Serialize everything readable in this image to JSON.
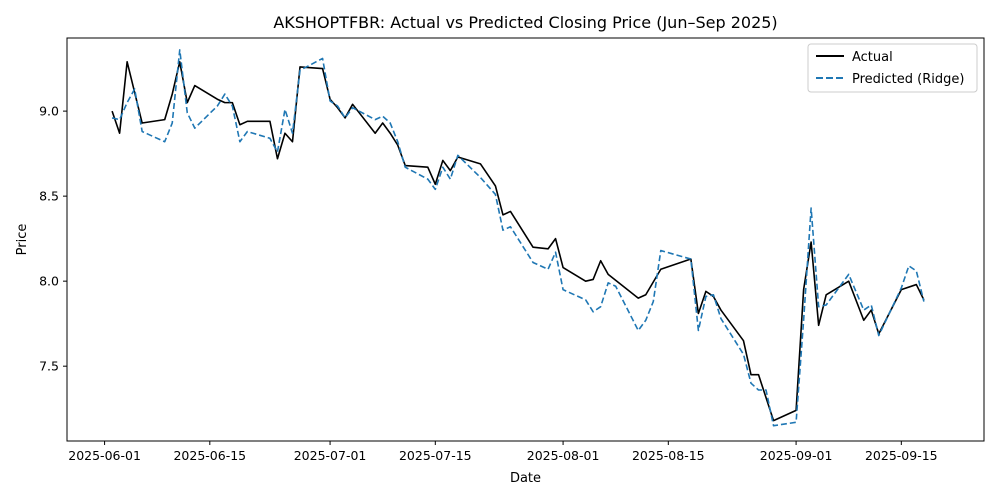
{
  "chart_data": {
    "type": "line",
    "title": "AKSHOPTFBR: Actual vs Predicted Closing Price (Jun–Sep 2025)",
    "xlabel": "Date",
    "ylabel": "Price",
    "xlim": [
      "2025-05-27",
      "2025-09-26"
    ],
    "ylim": [
      7.06,
      9.43
    ],
    "x_ticks": [
      "2025-06-01",
      "2025-06-15",
      "2025-07-01",
      "2025-07-15",
      "2025-08-01",
      "2025-08-15",
      "2025-09-01",
      "2025-09-15"
    ],
    "y_ticks": [
      "7.5",
      "8.0",
      "8.5",
      "9.0"
    ],
    "grid": false,
    "legend_position": "top-right",
    "colors": {
      "actual": "#000000",
      "predicted": "#1f77b4"
    },
    "series": [
      {
        "name": "Actual",
        "style": "solid",
        "points": [
          [
            "2025-06-02",
            9.0
          ],
          [
            "2025-06-03",
            8.87
          ],
          [
            "2025-06-04",
            9.29
          ],
          [
            "2025-06-06",
            8.93
          ],
          [
            "2025-06-09",
            8.95
          ],
          [
            "2025-06-10",
            9.1
          ],
          [
            "2025-06-11",
            9.29
          ],
          [
            "2025-06-12",
            9.05
          ],
          [
            "2025-06-13",
            9.15
          ],
          [
            "2025-06-16",
            9.07
          ],
          [
            "2025-06-17",
            9.05
          ],
          [
            "2025-06-18",
            9.05
          ],
          [
            "2025-06-19",
            8.92
          ],
          [
            "2025-06-20",
            8.94
          ],
          [
            "2025-06-23",
            8.94
          ],
          [
            "2025-06-24",
            8.72
          ],
          [
            "2025-06-25",
            8.87
          ],
          [
            "2025-06-26",
            8.82
          ],
          [
            "2025-06-27",
            9.26
          ],
          [
            "2025-06-30",
            9.25
          ],
          [
            "2025-07-01",
            9.07
          ],
          [
            "2025-07-02",
            9.02
          ],
          [
            "2025-07-03",
            8.96
          ],
          [
            "2025-07-04",
            9.04
          ],
          [
            "2025-07-07",
            8.87
          ],
          [
            "2025-07-08",
            8.93
          ],
          [
            "2025-07-09",
            8.87
          ],
          [
            "2025-07-10",
            8.8
          ],
          [
            "2025-07-11",
            8.68
          ],
          [
            "2025-07-14",
            8.67
          ],
          [
            "2025-07-15",
            8.57
          ],
          [
            "2025-07-16",
            8.71
          ],
          [
            "2025-07-17",
            8.65
          ],
          [
            "2025-07-18",
            8.73
          ],
          [
            "2025-07-21",
            8.69
          ],
          [
            "2025-07-23",
            8.56
          ],
          [
            "2025-07-24",
            8.39
          ],
          [
            "2025-07-25",
            8.41
          ],
          [
            "2025-07-28",
            8.2
          ],
          [
            "2025-07-30",
            8.19
          ],
          [
            "2025-07-31",
            8.25
          ],
          [
            "2025-08-01",
            8.08
          ],
          [
            "2025-08-04",
            8.0
          ],
          [
            "2025-08-05",
            8.01
          ],
          [
            "2025-08-06",
            8.12
          ],
          [
            "2025-08-07",
            8.04
          ],
          [
            "2025-08-11",
            7.9
          ],
          [
            "2025-08-12",
            7.92
          ],
          [
            "2025-08-14",
            8.07
          ],
          [
            "2025-08-18",
            8.13
          ],
          [
            "2025-08-19",
            7.81
          ],
          [
            "2025-08-20",
            7.94
          ],
          [
            "2025-08-21",
            7.91
          ],
          [
            "2025-08-22",
            7.83
          ],
          [
            "2025-08-25",
            7.65
          ],
          [
            "2025-08-26",
            7.45
          ],
          [
            "2025-08-27",
            7.45
          ],
          [
            "2025-08-29",
            7.18
          ],
          [
            "2025-09-01",
            7.24
          ],
          [
            "2025-09-02",
            7.95
          ],
          [
            "2025-09-03",
            8.23
          ],
          [
            "2025-09-04",
            7.74
          ],
          [
            "2025-09-05",
            7.92
          ],
          [
            "2025-09-08",
            8.0
          ],
          [
            "2025-09-10",
            7.77
          ],
          [
            "2025-09-11",
            7.83
          ],
          [
            "2025-09-12",
            7.69
          ],
          [
            "2025-09-15",
            7.95
          ],
          [
            "2025-09-17",
            7.98
          ],
          [
            "2025-09-18",
            7.89
          ]
        ]
      },
      {
        "name": "Predicted (Ridge)",
        "style": "dashed",
        "points": [
          [
            "2025-06-02",
            8.96
          ],
          [
            "2025-06-03",
            8.95
          ],
          [
            "2025-06-04",
            9.05
          ],
          [
            "2025-06-05",
            9.13
          ],
          [
            "2025-06-06",
            8.88
          ],
          [
            "2025-06-09",
            8.82
          ],
          [
            "2025-06-10",
            8.93
          ],
          [
            "2025-06-11",
            9.36
          ],
          [
            "2025-06-12",
            8.99
          ],
          [
            "2025-06-13",
            8.9
          ],
          [
            "2025-06-16",
            9.03
          ],
          [
            "2025-06-17",
            9.1
          ],
          [
            "2025-06-18",
            9.03
          ],
          [
            "2025-06-19",
            8.82
          ],
          [
            "2025-06-20",
            8.88
          ],
          [
            "2025-06-23",
            8.84
          ],
          [
            "2025-06-24",
            8.76
          ],
          [
            "2025-06-25",
            9.01
          ],
          [
            "2025-06-26",
            8.87
          ],
          [
            "2025-06-27",
            9.24
          ],
          [
            "2025-06-30",
            9.31
          ],
          [
            "2025-07-01",
            9.06
          ],
          [
            "2025-07-02",
            9.03
          ],
          [
            "2025-07-03",
            8.96
          ],
          [
            "2025-07-04",
            9.02
          ],
          [
            "2025-07-07",
            8.95
          ],
          [
            "2025-07-08",
            8.97
          ],
          [
            "2025-07-09",
            8.93
          ],
          [
            "2025-07-10",
            8.82
          ],
          [
            "2025-07-11",
            8.67
          ],
          [
            "2025-07-14",
            8.6
          ],
          [
            "2025-07-15",
            8.54
          ],
          [
            "2025-07-16",
            8.67
          ],
          [
            "2025-07-17",
            8.6
          ],
          [
            "2025-07-18",
            8.74
          ],
          [
            "2025-07-21",
            8.61
          ],
          [
            "2025-07-23",
            8.51
          ],
          [
            "2025-07-24",
            8.3
          ],
          [
            "2025-07-25",
            8.32
          ],
          [
            "2025-07-28",
            8.11
          ],
          [
            "2025-07-30",
            8.07
          ],
          [
            "2025-07-31",
            8.17
          ],
          [
            "2025-08-01",
            7.95
          ],
          [
            "2025-08-04",
            7.89
          ],
          [
            "2025-08-05",
            7.82
          ],
          [
            "2025-08-06",
            7.85
          ],
          [
            "2025-08-07",
            7.99
          ],
          [
            "2025-08-08",
            7.97
          ],
          [
            "2025-08-11",
            7.71
          ],
          [
            "2025-08-12",
            7.77
          ],
          [
            "2025-08-13",
            7.88
          ],
          [
            "2025-08-14",
            8.18
          ],
          [
            "2025-08-18",
            8.13
          ],
          [
            "2025-08-19",
            7.71
          ],
          [
            "2025-08-20",
            7.91
          ],
          [
            "2025-08-21",
            7.92
          ],
          [
            "2025-08-22",
            7.78
          ],
          [
            "2025-08-25",
            7.57
          ],
          [
            "2025-08-26",
            7.4
          ],
          [
            "2025-08-27",
            7.36
          ],
          [
            "2025-08-28",
            7.36
          ],
          [
            "2025-08-29",
            7.15
          ],
          [
            "2025-09-01",
            7.17
          ],
          [
            "2025-09-02",
            7.77
          ],
          [
            "2025-09-03",
            8.43
          ],
          [
            "2025-09-04",
            7.85
          ],
          [
            "2025-09-05",
            7.86
          ],
          [
            "2025-09-08",
            8.04
          ],
          [
            "2025-09-10",
            7.83
          ],
          [
            "2025-09-11",
            7.86
          ],
          [
            "2025-09-12",
            7.68
          ],
          [
            "2025-09-15",
            7.96
          ],
          [
            "2025-09-16",
            8.09
          ],
          [
            "2025-09-17",
            8.06
          ],
          [
            "2025-09-18",
            7.88
          ]
        ]
      }
    ]
  }
}
